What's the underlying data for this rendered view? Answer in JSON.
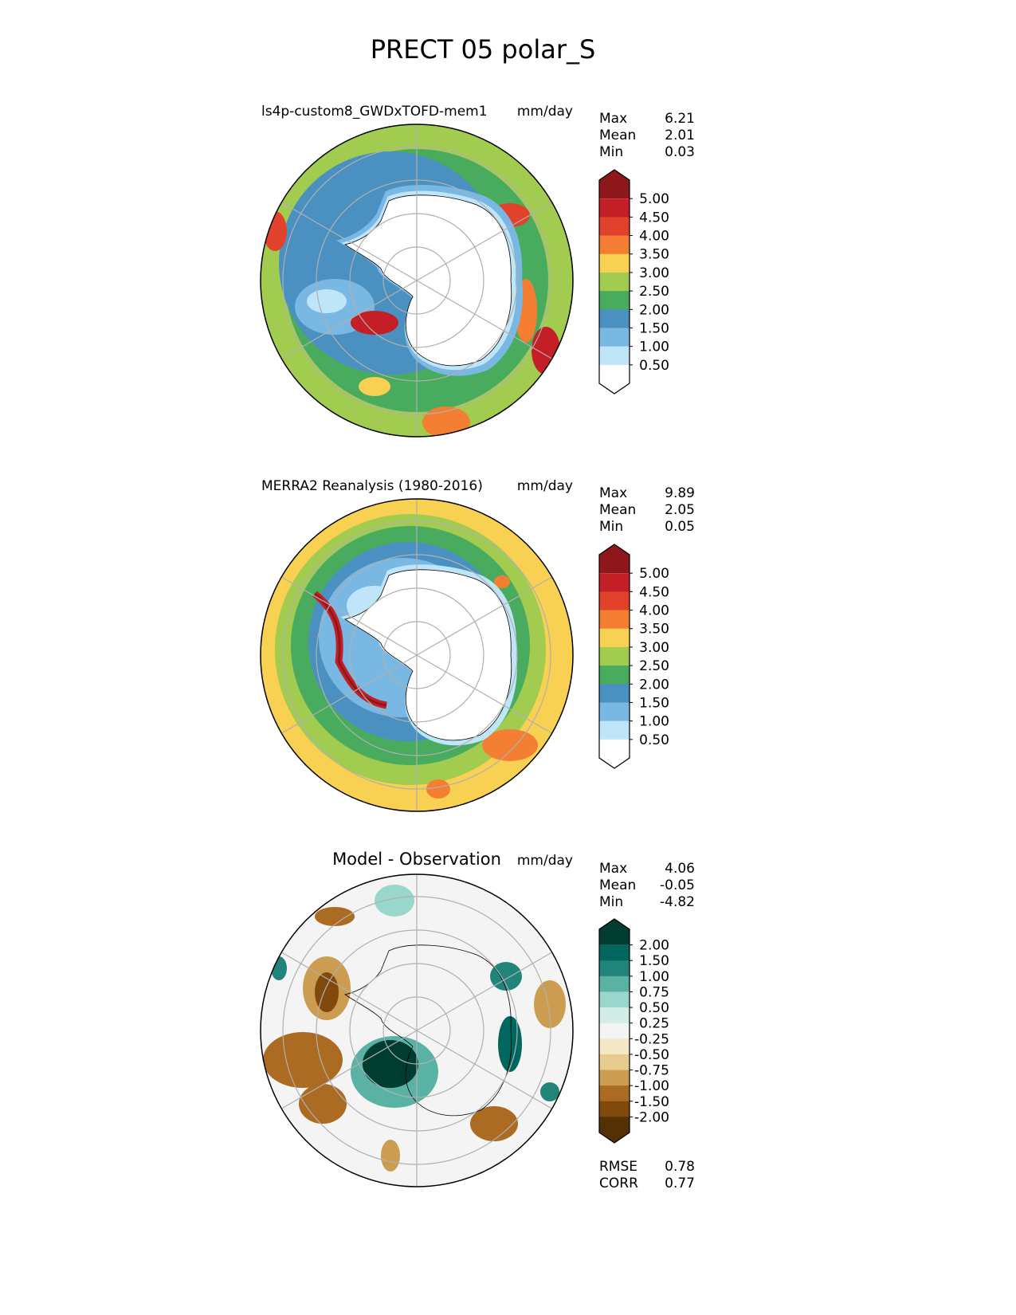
{
  "chart_data": {
    "type": "heatmap",
    "title": "PRECT 05 polar_S",
    "projection": "south-polar stereographic",
    "panels": [
      {
        "name": "model",
        "title": "ls4p-custom8_GWDxTOFD-mem1",
        "units": "mm/day",
        "stats": {
          "Max": "6.21",
          "Mean": "2.01",
          "Min": "0.03"
        },
        "colorbar": {
          "levels": [
            "0.50",
            "1.00",
            "1.50",
            "2.00",
            "2.50",
            "3.00",
            "3.50",
            "4.00",
            "4.50",
            "5.00"
          ],
          "colors": [
            "#ffffff",
            "#bfe6f8",
            "#7ab8e4",
            "#4a91c1",
            "#49ab5e",
            "#a2cc50",
            "#f8d052",
            "#f47f33",
            "#e2422b",
            "#c41f26",
            "#8e171c"
          ],
          "extend": "both"
        }
      },
      {
        "name": "reference",
        "title": "MERRA2 Reanalysis (1980-2016)",
        "units": "mm/day",
        "stats": {
          "Max": "9.89",
          "Mean": "2.05",
          "Min": "0.05"
        },
        "colorbar": {
          "levels": [
            "0.50",
            "1.00",
            "1.50",
            "2.00",
            "2.50",
            "3.00",
            "3.50",
            "4.00",
            "4.50",
            "5.00"
          ],
          "colors": [
            "#ffffff",
            "#bfe6f8",
            "#7ab8e4",
            "#4a91c1",
            "#49ab5e",
            "#a2cc50",
            "#f8d052",
            "#f47f33",
            "#e2422b",
            "#c41f26",
            "#8e171c"
          ],
          "extend": "both"
        }
      },
      {
        "name": "difference",
        "title": "Model - Observation",
        "units": "mm/day",
        "stats": {
          "Max": "4.06",
          "Mean": "-0.05",
          "Min": "-4.82"
        },
        "colorbar": {
          "levels": [
            "-2.00",
            "-1.50",
            "-1.00",
            "-0.75",
            "-0.50",
            "-0.25",
            "0.25",
            "0.50",
            "0.75",
            "1.00",
            "1.50",
            "2.00"
          ],
          "colors": [
            "#543005",
            "#814a0c",
            "#ac6b22",
            "#cc9d51",
            "#e6cd8f",
            "#f5e8c6",
            "#f4f4f4",
            "#d2ece8",
            "#99d6cb",
            "#5ab2a5",
            "#218479",
            "#01665d",
            "#003c30"
          ],
          "extend": "both"
        },
        "metrics": {
          "RMSE": "0.78",
          "CORR": "0.77"
        }
      }
    ]
  }
}
